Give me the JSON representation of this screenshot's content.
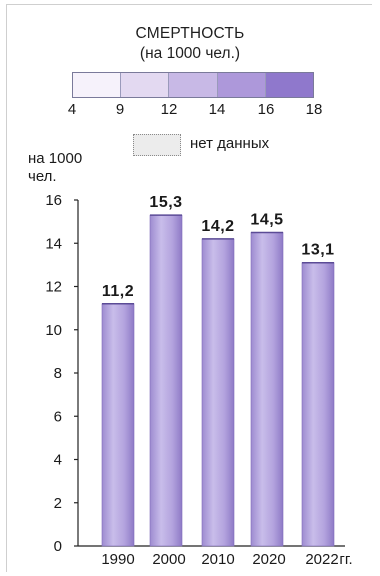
{
  "legend": {
    "title": "СМЕРТНОСТЬ",
    "subtitle": "(на 1000 чел.)",
    "scale_labels": [
      "4",
      "9",
      "12",
      "14",
      "16",
      "18"
    ],
    "scale_colors": [
      "#f6f2fb",
      "#e3d9f1",
      "#c8b9e6",
      "#ad98da",
      "#8f78cc"
    ],
    "no_data_label": "нет данных",
    "no_data_color": "#ececec"
  },
  "chart_data": {
    "type": "bar",
    "ylabel_line1": "на 1000",
    "ylabel_line2": "чел.",
    "x_suffix": "гг.",
    "categories": [
      "1990",
      "2000",
      "2010",
      "2020",
      "2022"
    ],
    "values": [
      11.2,
      15.3,
      14.2,
      14.5,
      13.1
    ],
    "value_labels": [
      "11,2",
      "15,3",
      "14,2",
      "14,5",
      "13,1"
    ],
    "ylim": [
      0,
      16
    ],
    "yticks": [
      0,
      2,
      4,
      6,
      8,
      10,
      12,
      14,
      16
    ],
    "bar_color": "#b7a7df",
    "grid": false
  }
}
